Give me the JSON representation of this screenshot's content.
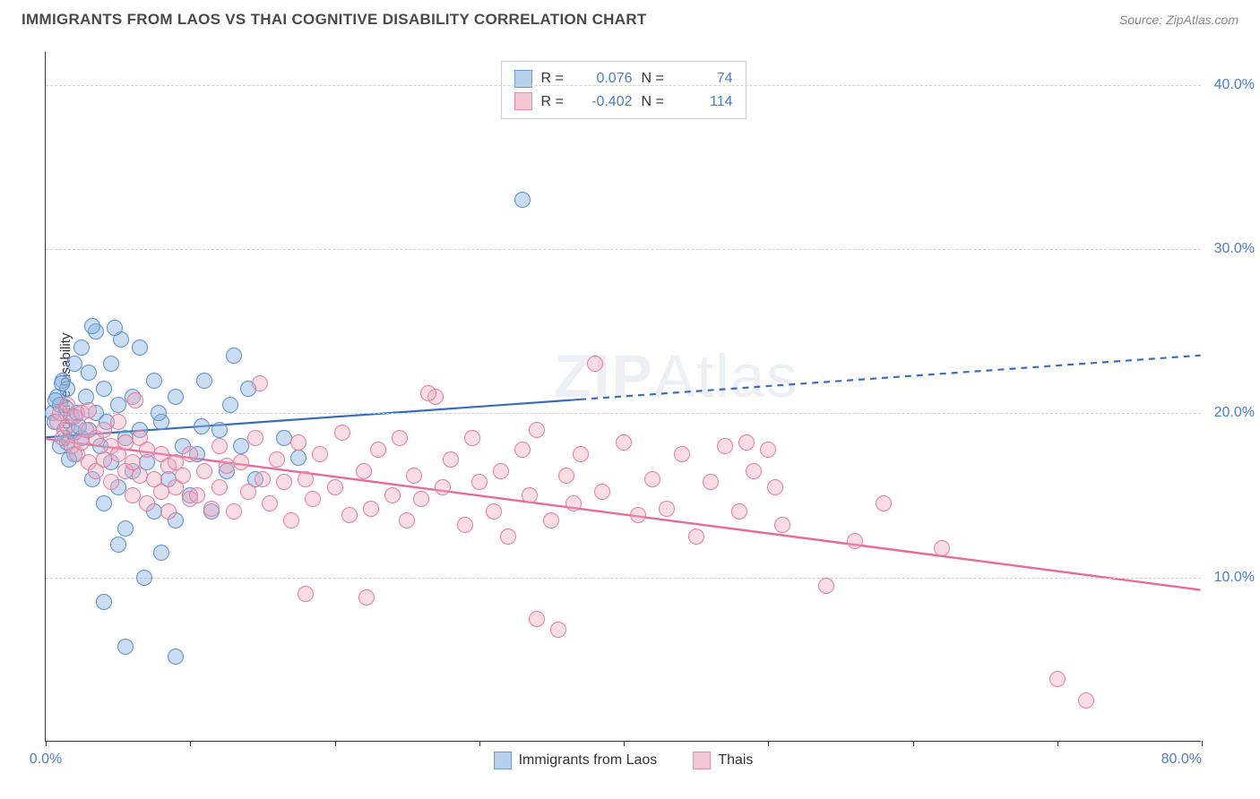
{
  "title": "IMMIGRANTS FROM LAOS VS THAI COGNITIVE DISABILITY CORRELATION CHART",
  "source": "Source: ZipAtlas.com",
  "ylabel": "Cognitive Disability",
  "watermark": {
    "bold": "ZIP",
    "rest": "Atlas"
  },
  "chart": {
    "type": "scatter",
    "background_color": "#ffffff",
    "grid_color": "#d0d0d0",
    "axis_color": "#333333",
    "tick_label_color": "#4a7ec9",
    "xlim": [
      0,
      80
    ],
    "ylim": [
      0,
      42
    ],
    "xticks": [
      0,
      10,
      20,
      30,
      40,
      50,
      60,
      70,
      80
    ],
    "xtick_labels": {
      "0": "0.0%",
      "80": "80.0%"
    },
    "yticks": [
      10,
      20,
      30,
      40
    ],
    "ytick_labels": {
      "10": "10.0%",
      "20": "20.0%",
      "30": "30.0%",
      "40": "40.0%"
    },
    "marker_radius": 9,
    "marker_stroke_width": 1.3,
    "series": [
      {
        "key": "laos",
        "label": "Immigrants from Laos",
        "fill": "rgba(138,179,226,0.45)",
        "stroke": "#5a8fc9",
        "swatch_fill": "#b6d0ec",
        "swatch_stroke": "#6a9bd1",
        "R": "0.076",
        "N": "74",
        "trend": {
          "x1": 0,
          "y1": 18.5,
          "x2": 80,
          "y2": 23.5,
          "solid_until_x": 37,
          "color": "#3a6fb8",
          "width": 2.2
        },
        "points": [
          [
            0.5,
            20
          ],
          [
            0.6,
            19.5
          ],
          [
            0.8,
            21
          ],
          [
            1,
            18
          ],
          [
            1,
            20.5
          ],
          [
            1.2,
            22
          ],
          [
            1.3,
            19
          ],
          [
            1.4,
            20.3
          ],
          [
            1.5,
            18.2
          ],
          [
            1.5,
            21.5
          ],
          [
            1.8,
            19.8
          ],
          [
            2,
            17.5
          ],
          [
            2,
            23
          ],
          [
            2.2,
            20
          ],
          [
            2.5,
            18.5
          ],
          [
            2.5,
            24
          ],
          [
            2.8,
            21
          ],
          [
            3,
            19
          ],
          [
            3,
            22.5
          ],
          [
            3.2,
            16
          ],
          [
            3.5,
            20
          ],
          [
            3.5,
            25
          ],
          [
            3.8,
            18
          ],
          [
            4,
            21.5
          ],
          [
            4,
            14.5
          ],
          [
            4.2,
            19.5
          ],
          [
            4.5,
            23
          ],
          [
            4.5,
            17
          ],
          [
            5,
            20.5
          ],
          [
            5,
            15.5
          ],
          [
            5.2,
            24.5
          ],
          [
            5.5,
            18.5
          ],
          [
            5.5,
            13
          ],
          [
            6,
            21
          ],
          [
            6,
            16.5
          ],
          [
            6.5,
            19
          ],
          [
            6.5,
            24
          ],
          [
            7,
            17
          ],
          [
            7.5,
            22
          ],
          [
            7.5,
            14
          ],
          [
            8,
            19.5
          ],
          [
            8,
            11.5
          ],
          [
            8.5,
            16
          ],
          [
            9,
            21
          ],
          [
            9,
            13.5
          ],
          [
            9.5,
            18
          ],
          [
            10,
            15
          ],
          [
            10.5,
            17.5
          ],
          [
            11,
            22
          ],
          [
            11.5,
            14
          ],
          [
            12,
            19
          ],
          [
            12.5,
            16.5
          ],
          [
            13,
            23.5
          ],
          [
            13.5,
            18
          ],
          [
            14,
            21.5
          ],
          [
            4,
            8.5
          ],
          [
            5.5,
            5.8
          ],
          [
            9,
            5.2
          ],
          [
            5,
            12
          ],
          [
            6.8,
            10
          ],
          [
            3.2,
            25.3
          ],
          [
            4.8,
            25.2
          ],
          [
            2,
            18.8
          ],
          [
            1.6,
            17.2
          ],
          [
            2.3,
            19.2
          ],
          [
            0.7,
            20.8
          ],
          [
            1.1,
            21.8
          ],
          [
            7.8,
            20
          ],
          [
            10.8,
            19.2
          ],
          [
            12.8,
            20.5
          ],
          [
            16.5,
            18.5
          ],
          [
            14.5,
            16
          ],
          [
            33,
            33
          ],
          [
            17.5,
            17.3
          ]
        ]
      },
      {
        "key": "thais",
        "label": "Thais",
        "fill": "rgba(240,170,190,0.40)",
        "stroke": "#e37da0",
        "swatch_fill": "#f3c8d4",
        "swatch_stroke": "#e88ba8",
        "R": "-0.402",
        "N": "114",
        "trend": {
          "x1": 0,
          "y1": 18.4,
          "x2": 80,
          "y2": 9.2,
          "solid_until_x": 80,
          "color": "#e76a97",
          "width": 2.4
        },
        "points": [
          [
            0.8,
            19.5
          ],
          [
            1,
            20
          ],
          [
            1.2,
            18.5
          ],
          [
            1.5,
            19.2
          ],
          [
            1.5,
            20.5
          ],
          [
            1.8,
            18
          ],
          [
            2,
            19.8
          ],
          [
            2.2,
            17.5
          ],
          [
            2.5,
            20
          ],
          [
            2.5,
            18.2
          ],
          [
            2.8,
            19
          ],
          [
            3,
            17
          ],
          [
            3,
            20.2
          ],
          [
            3.5,
            18.5
          ],
          [
            3.5,
            16.5
          ],
          [
            4,
            19
          ],
          [
            4,
            17.2
          ],
          [
            4.5,
            18
          ],
          [
            4.5,
            15.8
          ],
          [
            5,
            17.5
          ],
          [
            5,
            19.5
          ],
          [
            5.5,
            16.5
          ],
          [
            5.5,
            18.2
          ],
          [
            6,
            17
          ],
          [
            6,
            15
          ],
          [
            6.5,
            18.5
          ],
          [
            6.5,
            16.2
          ],
          [
            7,
            17.8
          ],
          [
            7,
            14.5
          ],
          [
            7.5,
            16
          ],
          [
            8,
            17.5
          ],
          [
            8,
            15.2
          ],
          [
            8.5,
            16.8
          ],
          [
            8.5,
            14
          ],
          [
            9,
            17
          ],
          [
            9,
            15.5
          ],
          [
            9.5,
            16.2
          ],
          [
            10,
            14.8
          ],
          [
            10,
            17.5
          ],
          [
            10.5,
            15
          ],
          [
            11,
            16.5
          ],
          [
            11.5,
            14.2
          ],
          [
            12,
            18
          ],
          [
            12,
            15.5
          ],
          [
            12.5,
            16.8
          ],
          [
            13,
            14
          ],
          [
            13.5,
            17
          ],
          [
            14,
            15.2
          ],
          [
            14.5,
            18.5
          ],
          [
            15,
            16
          ],
          [
            15.5,
            14.5
          ],
          [
            16,
            17.2
          ],
          [
            16.5,
            15.8
          ],
          [
            17,
            13.5
          ],
          [
            17.5,
            18.2
          ],
          [
            18,
            16
          ],
          [
            18.5,
            14.8
          ],
          [
            19,
            17.5
          ],
          [
            20,
            15.5
          ],
          [
            20.5,
            18.8
          ],
          [
            21,
            13.8
          ],
          [
            22,
            16.5
          ],
          [
            22.5,
            14.2
          ],
          [
            23,
            17.8
          ],
          [
            24,
            15
          ],
          [
            24.5,
            18.5
          ],
          [
            25,
            13.5
          ],
          [
            25.5,
            16.2
          ],
          [
            26,
            14.8
          ],
          [
            27,
            21
          ],
          [
            27.5,
            15.5
          ],
          [
            28,
            17.2
          ],
          [
            29,
            13.2
          ],
          [
            29.5,
            18.5
          ],
          [
            30,
            15.8
          ],
          [
            31,
            14
          ],
          [
            31.5,
            16.5
          ],
          [
            32,
            12.5
          ],
          [
            33,
            17.8
          ],
          [
            33.5,
            15
          ],
          [
            34,
            19
          ],
          [
            35,
            13.5
          ],
          [
            36,
            16.2
          ],
          [
            36.5,
            14.5
          ],
          [
            37,
            17.5
          ],
          [
            38,
            23
          ],
          [
            38.5,
            15.2
          ],
          [
            40,
            18.2
          ],
          [
            41,
            13.8
          ],
          [
            42,
            16
          ],
          [
            43,
            14.2
          ],
          [
            44,
            17.5
          ],
          [
            45,
            12.5
          ],
          [
            46,
            15.8
          ],
          [
            47,
            18
          ],
          [
            48,
            14
          ],
          [
            49,
            16.5
          ],
          [
            50,
            17.8
          ],
          [
            51,
            13.2
          ],
          [
            34,
            7.5
          ],
          [
            35.5,
            6.8
          ],
          [
            18,
            9
          ],
          [
            54,
            9.5
          ],
          [
            56,
            12.2
          ],
          [
            58,
            14.5
          ],
          [
            62,
            11.8
          ],
          [
            70,
            3.8
          ],
          [
            72,
            2.5
          ],
          [
            48.5,
            18.2
          ],
          [
            50.5,
            15.5
          ],
          [
            14.8,
            21.8
          ],
          [
            26.5,
            21.2
          ],
          [
            22.2,
            8.8
          ],
          [
            6.2,
            20.8
          ]
        ]
      }
    ]
  },
  "bottom_legend": [
    {
      "label": "Immigrants from Laos",
      "fill": "#b6d0ec",
      "stroke": "#6a9bd1"
    },
    {
      "label": "Thais",
      "fill": "#f3c8d4",
      "stroke": "#e88ba8"
    }
  ]
}
